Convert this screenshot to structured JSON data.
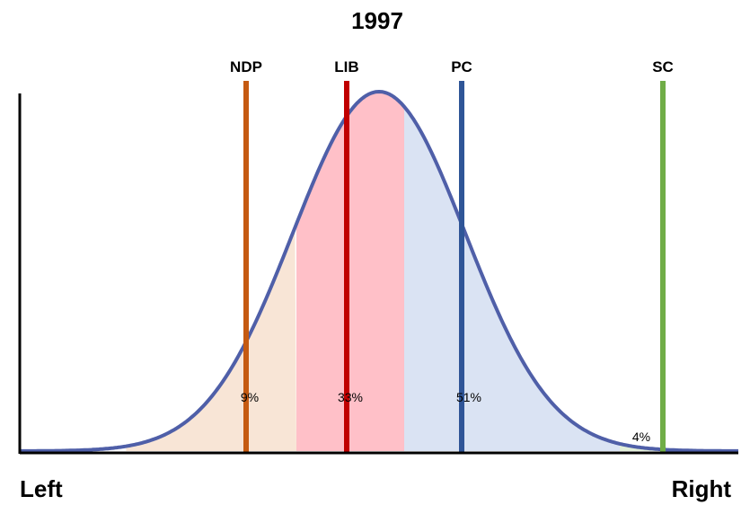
{
  "title": "1997",
  "axis": {
    "left_label": "Left",
    "right_label": "Right"
  },
  "chart_data": {
    "type": "area",
    "title": "1997",
    "x_range": [
      0,
      100
    ],
    "curve": {
      "mean": 50,
      "sd": 12,
      "color": "#4f5fa8"
    },
    "parties": [
      {
        "name": "NDP",
        "position": 31.5,
        "color": "#c55a11"
      },
      {
        "name": "LIB",
        "position": 45.5,
        "color": "#c00000"
      },
      {
        "name": "PC",
        "position": 61.5,
        "color": "#2f5597"
      },
      {
        "name": "SC",
        "position": 89.5,
        "color": "#70ad47"
      }
    ],
    "regions": [
      {
        "party": "NDP",
        "from": 14.8,
        "to": 38.5,
        "share": "9%",
        "label_x": 32,
        "label_y": 0.15,
        "fill": "#f8e5d6"
      },
      {
        "party": "LIB",
        "from": 38.5,
        "to": 53.5,
        "share": "33%",
        "label_x": 46,
        "label_y": 0.15,
        "fill": "#ffc0c8"
      },
      {
        "party": "PC",
        "from": 53.5,
        "to": 83.5,
        "share": "51%",
        "label_x": 62.5,
        "label_y": 0.15,
        "fill": "#dae3f3"
      },
      {
        "party": "SC",
        "from": 83.5,
        "to": 97.5,
        "share": "4%",
        "label_x": 86.5,
        "label_y": 0.04,
        "fill": "#e2efd9"
      }
    ]
  }
}
